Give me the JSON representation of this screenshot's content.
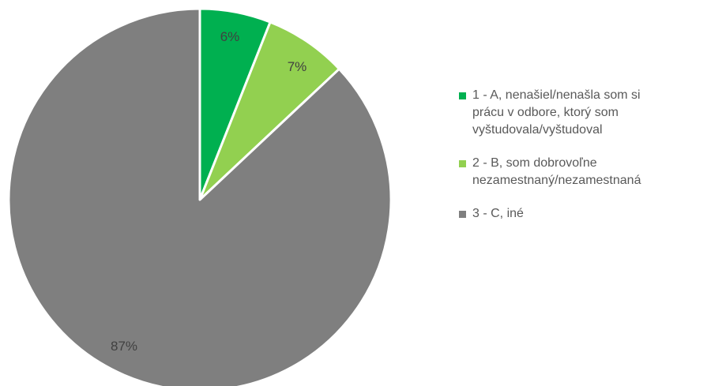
{
  "chart_data": {
    "type": "pie",
    "categories": [
      "1 - A, nenašiel/nenašla som si\nprácu v odbore, ktorý som\nvyštudovala/vyštudoval",
      "2 - B, som dobrovoľne\nnezamestnaný/nezamestnaná",
      "3 - C, iné"
    ],
    "values": [
      6,
      7,
      87
    ],
    "data_labels": [
      "6%",
      "7%",
      "87%"
    ],
    "colors": [
      "#00b050",
      "#92d050",
      "#7f7f7f"
    ],
    "start_angle": "12 o'clock",
    "direction": "clockwise",
    "legend_position": "right"
  }
}
